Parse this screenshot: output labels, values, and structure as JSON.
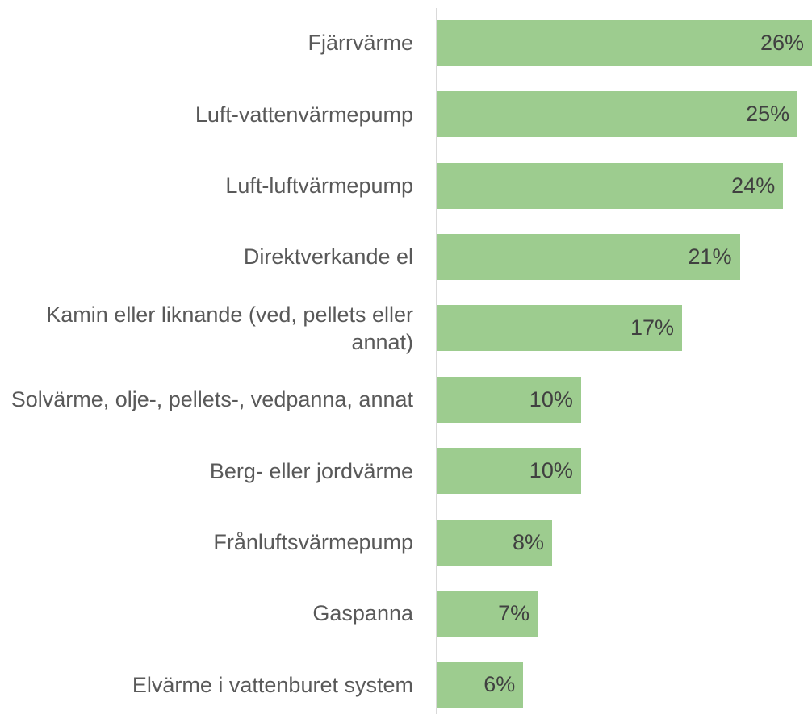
{
  "chart_data": {
    "type": "bar",
    "orientation": "horizontal",
    "categories": [
      "Fjärrvärme",
      "Luft-vattenvärmepump",
      "Luft-luftvärmepump",
      "Direktverkande el",
      "Kamin eller liknande (ved, pellets eller annat)",
      "Solvärme, olje-, pellets-, vedpanna, annat",
      "Berg- eller jordvärme",
      "Frånluftsvärmepump",
      "Gaspanna",
      "Elvärme i vattenburet system"
    ],
    "values": [
      26,
      25,
      24,
      21,
      17,
      10,
      10,
      8,
      7,
      6
    ],
    "value_labels": [
      "26%",
      "25%",
      "24%",
      "21%",
      "17%",
      "10%",
      "10%",
      "8%",
      "7%",
      "6%"
    ],
    "color": "#9dcc8f",
    "xlim": [
      0,
      26
    ]
  }
}
